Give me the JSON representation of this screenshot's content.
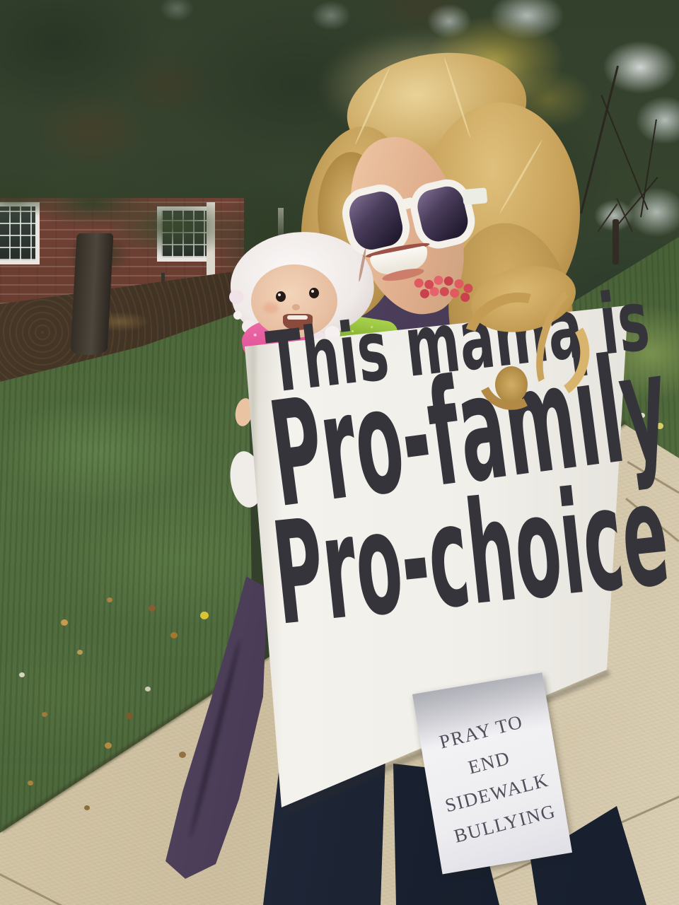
{
  "scene": {
    "description": "Outdoor photo: woman with curly blonde hair and large white sunglasses smiles over her shoulder while carrying a baby in a white ruffled bonnet; she wears a hand-lettered protest sign on her back and a small paper sign below it",
    "setting": "suburban lawn and sidewalk in front of a brick house with trees"
  },
  "main_sign": {
    "line1": "This mama is",
    "line2": "Pro-family",
    "line3": "Pro-choice",
    "text_color": "#35343b",
    "board_color": "#f2f0ea"
  },
  "small_sign": {
    "line1": "PRAY TO END",
    "line2": "SIDEWALK",
    "line3": "BULLYING",
    "text_color": "#514f5c",
    "paper_color": "#f0f0f3"
  },
  "palette": {
    "foliage_green": "#2e3b2a",
    "grass_green": "#4f6a3c",
    "sidewalk_beige": "#d2c5a7",
    "brick_red": "#6f4134",
    "hair_blonde": "#cfa963",
    "wrap_purple": "#473a54",
    "jeans_navy": "#1d2534",
    "carrier_strap_green": "#9ac43e",
    "necklace_coral": "#e05a60",
    "bonnet_white": "#f6f3f1",
    "baby_outfit_pink": "#e2569b",
    "sunglasses_frame": "#f3f1ea"
  }
}
